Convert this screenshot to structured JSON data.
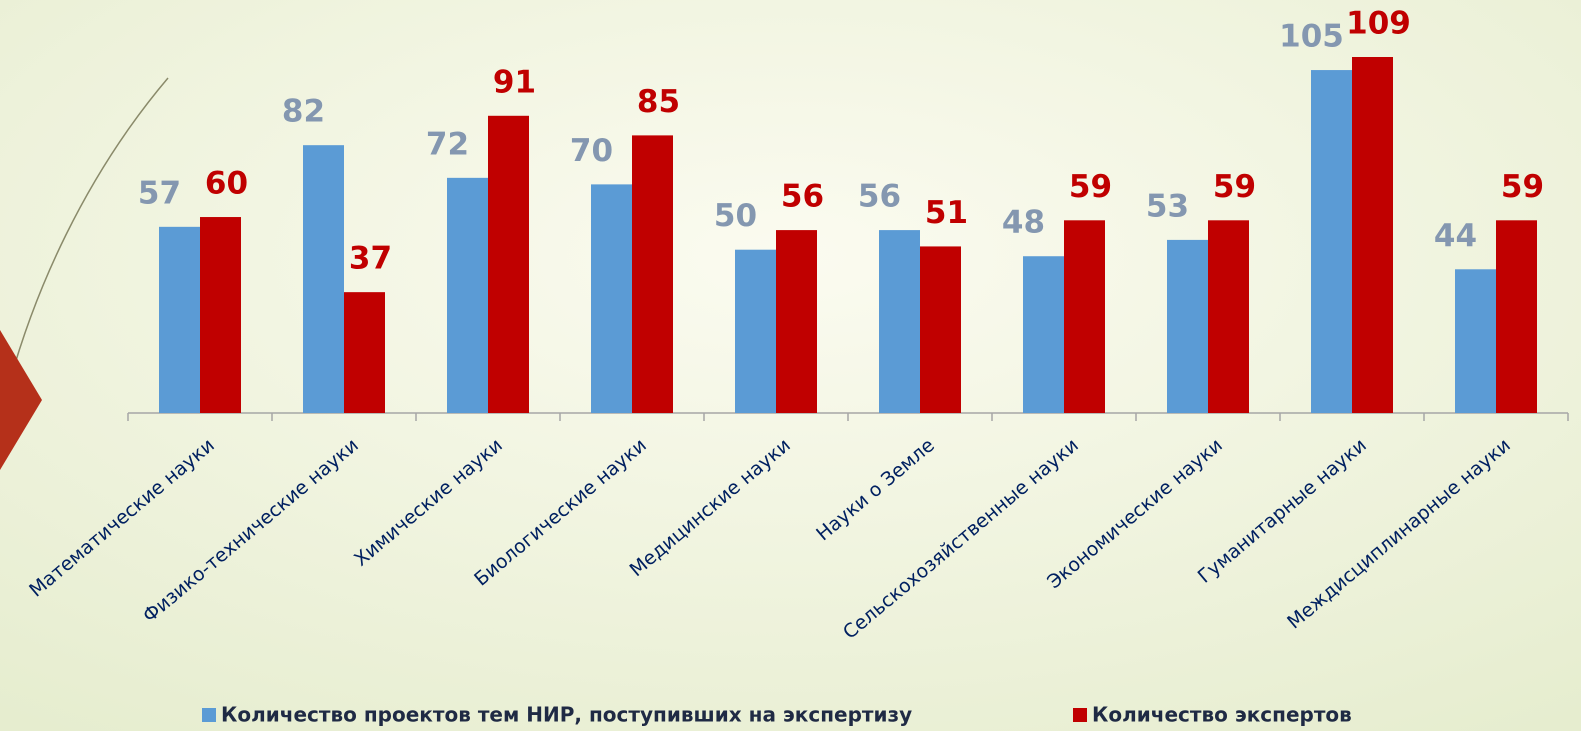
{
  "chart_data": {
    "type": "bar",
    "categories": [
      "Математические науки",
      "Физико-технические науки",
      "Химические науки",
      "Биологические науки",
      "Медицинские науки",
      "Науки о Земле",
      "Сельскохозяйственные науки",
      "Экономические науки",
      "Гуманитарные науки",
      "Междисциплинарные науки"
    ],
    "series": [
      {
        "name": "Количество проектов тем НИР, поступивших на экспертизу",
        "color": "#5b9bd5",
        "label_color": "#8497b0",
        "values": [
          57,
          82,
          72,
          70,
          50,
          56,
          48,
          53,
          105,
          44
        ]
      },
      {
        "name": "Количество экспертов",
        "color": "#c00000",
        "label_color": "#c00000",
        "values": [
          60,
          37,
          91,
          85,
          56,
          51,
          59,
          59,
          109,
          59
        ]
      }
    ]
  }
}
